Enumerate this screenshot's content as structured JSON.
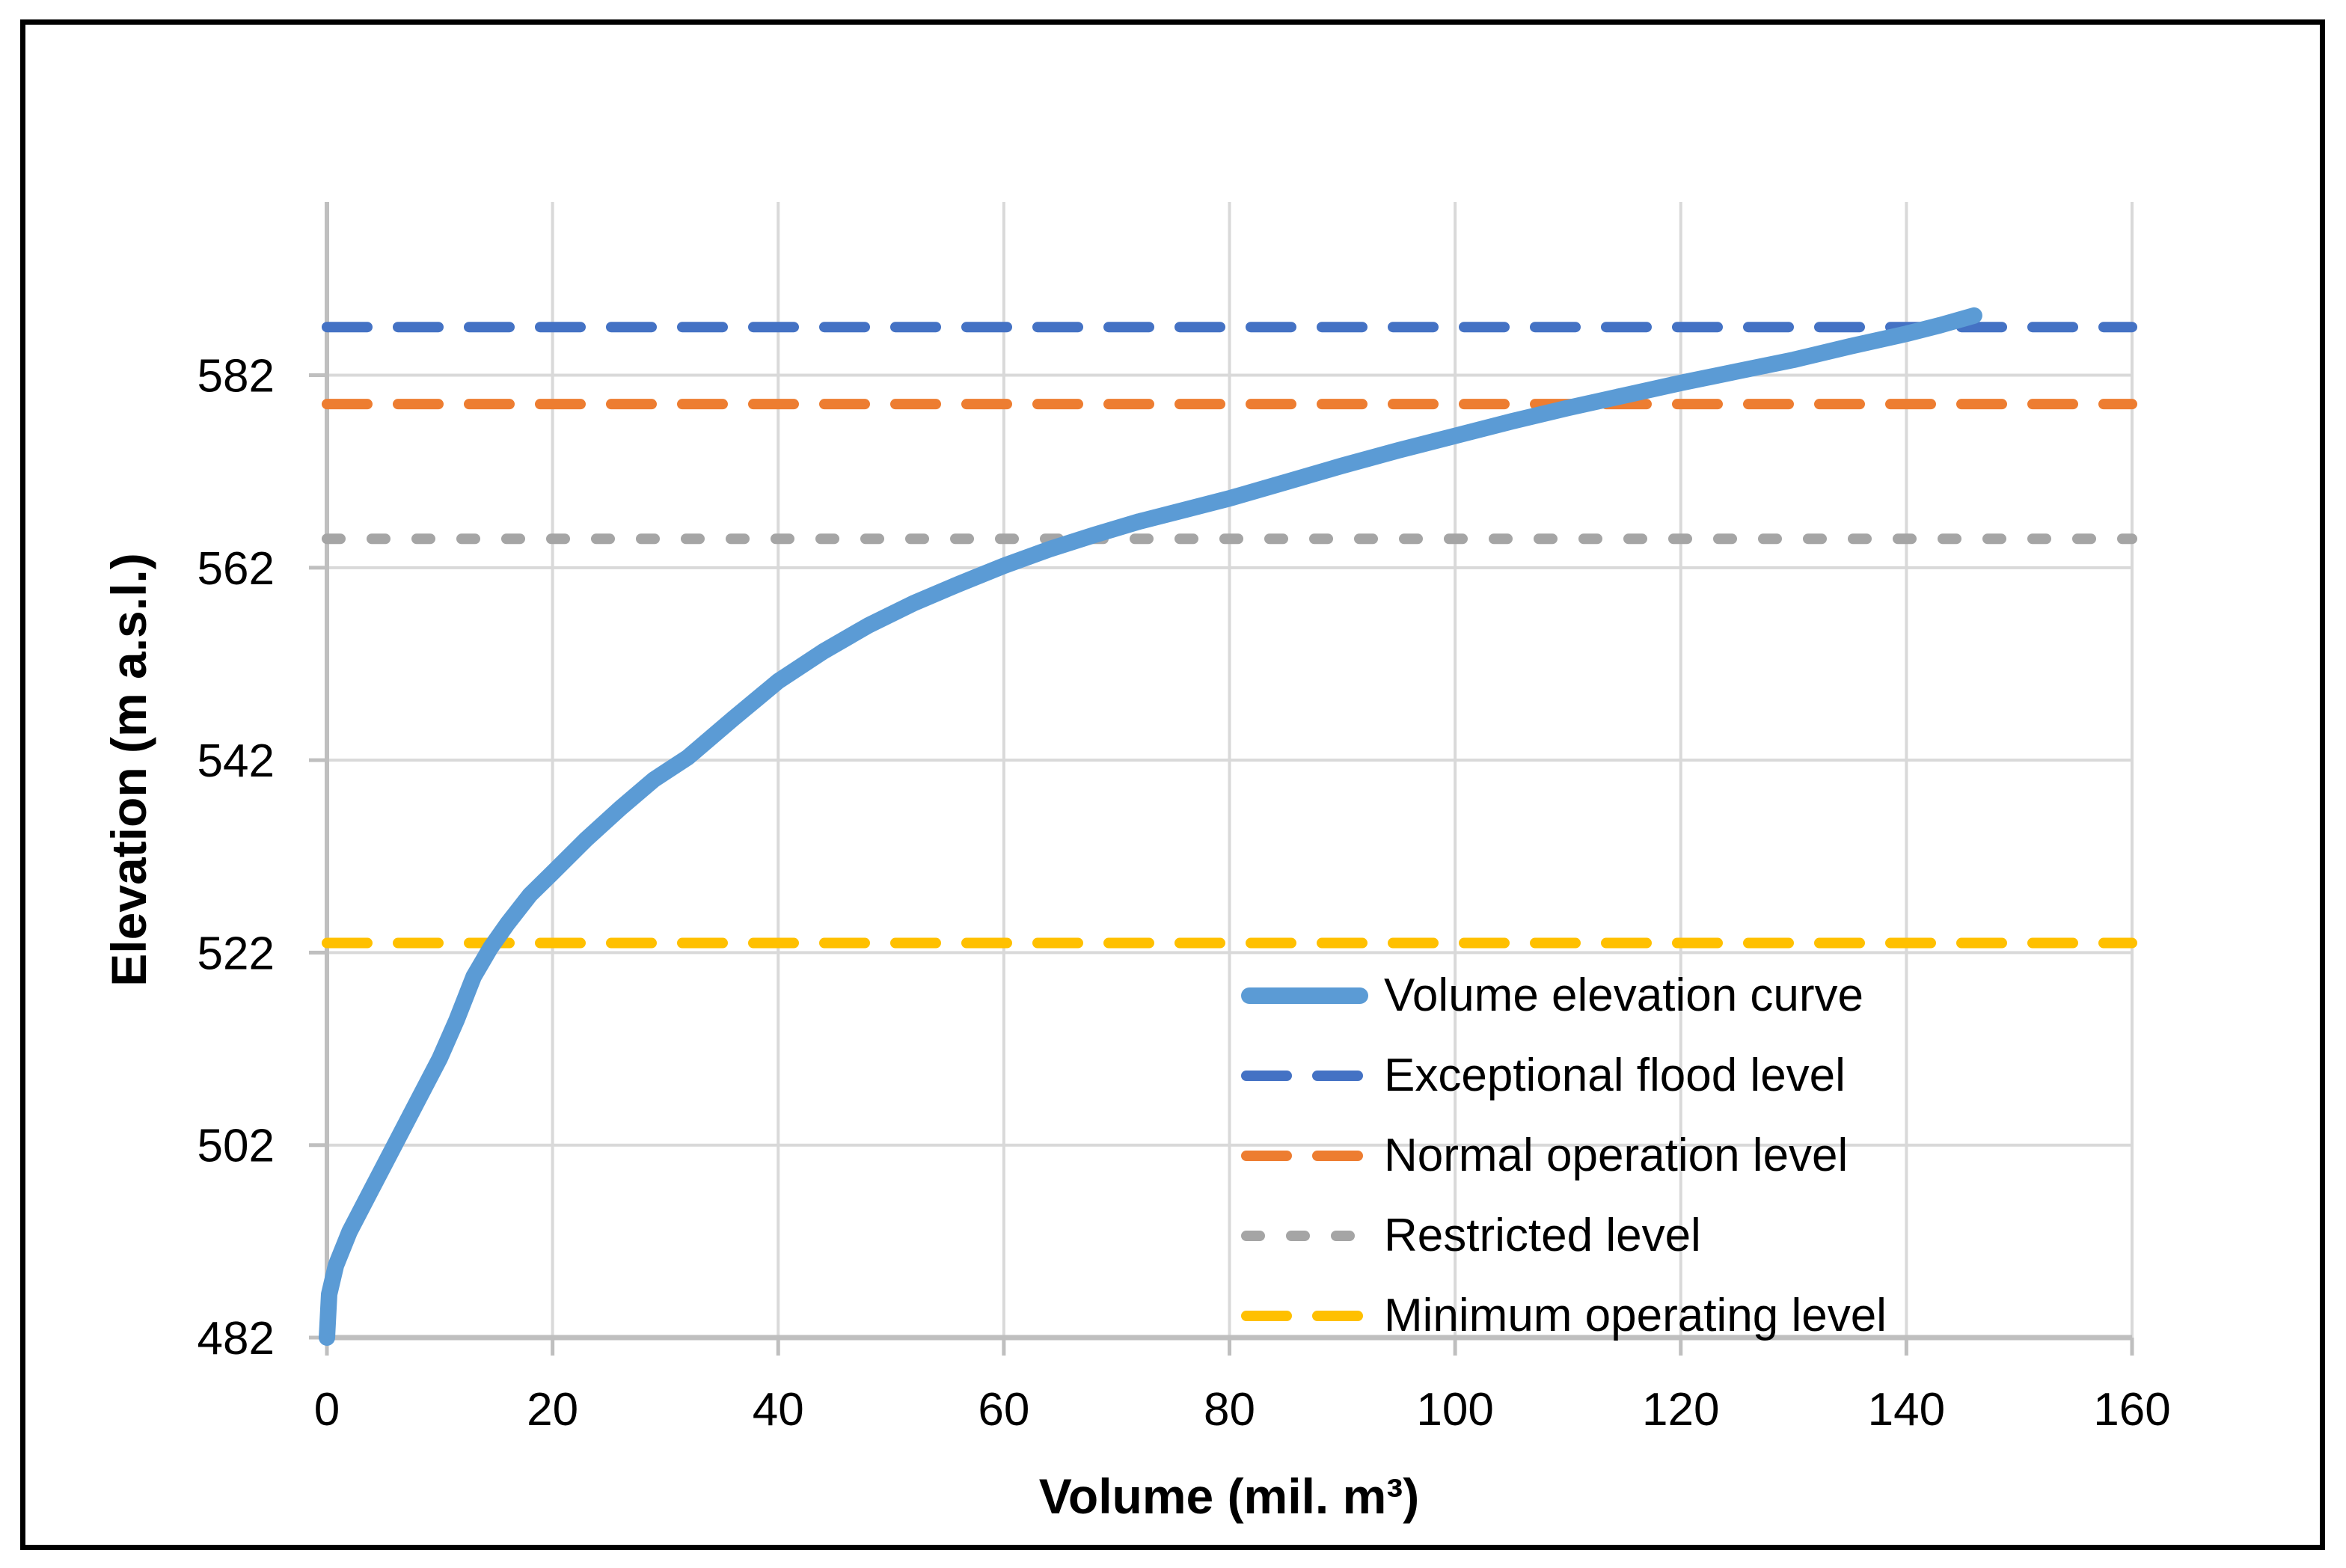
{
  "chart_data": {
    "type": "line",
    "title": "",
    "xlabel": "Volume (mil. m³)",
    "ylabel": "Elevation (m a.s.l.)",
    "x_axis": {
      "min": 0,
      "max": 160,
      "major": 20,
      "tick_labels": [
        "0",
        "20",
        "40",
        "60",
        "80",
        "100",
        "120",
        "140",
        "160"
      ]
    },
    "y_axis": {
      "min": 482,
      "max": 600,
      "major": 20,
      "tick_labels": [
        "482",
        "502",
        "522",
        "542",
        "562",
        "582"
      ],
      "label_values": [
        482,
        502,
        522,
        542,
        562,
        582
      ]
    },
    "grid": true,
    "grid_color": "#D9D9D9",
    "axis_color": "#BFBFBF",
    "text_color": "#000000",
    "legend_position": "inside-bottom-right",
    "series": [
      {
        "name": "Volume elevation curve",
        "kind": "curve",
        "color": "#5B9BD5",
        "stroke_width": 22,
        "dash": null,
        "points": [
          [
            0,
            482
          ],
          [
            0.2,
            486.5
          ],
          [
            0.8,
            489.5
          ],
          [
            2,
            493
          ],
          [
            4,
            497.5
          ],
          [
            6,
            502
          ],
          [
            8,
            506.5
          ],
          [
            10,
            511
          ],
          [
            11.5,
            515
          ],
          [
            13,
            519.5
          ],
          [
            14.5,
            522.5
          ],
          [
            16,
            525
          ],
          [
            18,
            528
          ],
          [
            20,
            530.3
          ],
          [
            23,
            533.8
          ],
          [
            26,
            537
          ],
          [
            29,
            540
          ],
          [
            32,
            542.3
          ],
          [
            36,
            546.3
          ],
          [
            40,
            550.2
          ],
          [
            44,
            553.3
          ],
          [
            48,
            556
          ],
          [
            52,
            558.3
          ],
          [
            56,
            560.3
          ],
          [
            60,
            562.2
          ],
          [
            64,
            563.9
          ],
          [
            68,
            565.4
          ],
          [
            72,
            566.8
          ],
          [
            76,
            568
          ],
          [
            80,
            569.2
          ],
          [
            85,
            570.9
          ],
          [
            90,
            572.6
          ],
          [
            95,
            574.2
          ],
          [
            100,
            575.7
          ],
          [
            105,
            577.2
          ],
          [
            110,
            578.6
          ],
          [
            115,
            579.9
          ],
          [
            120,
            581.2
          ],
          [
            125,
            582.4
          ],
          [
            130,
            583.6
          ],
          [
            135,
            585
          ],
          [
            140,
            586.3
          ],
          [
            143,
            587.2
          ],
          [
            146,
            588.2
          ]
        ]
      },
      {
        "name": "Exceptional flood level",
        "kind": "level",
        "value": 587,
        "color": "#4472C4",
        "stroke_width": 14,
        "dash": "54 41"
      },
      {
        "name": "Normal operation level",
        "kind": "level",
        "value": 579,
        "color": "#ED7D31",
        "stroke_width": 14,
        "dash": "54 41"
      },
      {
        "name": "Restricted level",
        "kind": "level",
        "value": 565,
        "color": "#A5A5A5",
        "stroke_width": 14,
        "dash": "18 42"
      },
      {
        "name": "Minimum operating level",
        "kind": "level",
        "value": 523,
        "color": "#FFC000",
        "stroke_width": 14,
        "dash": "54 41"
      }
    ]
  }
}
